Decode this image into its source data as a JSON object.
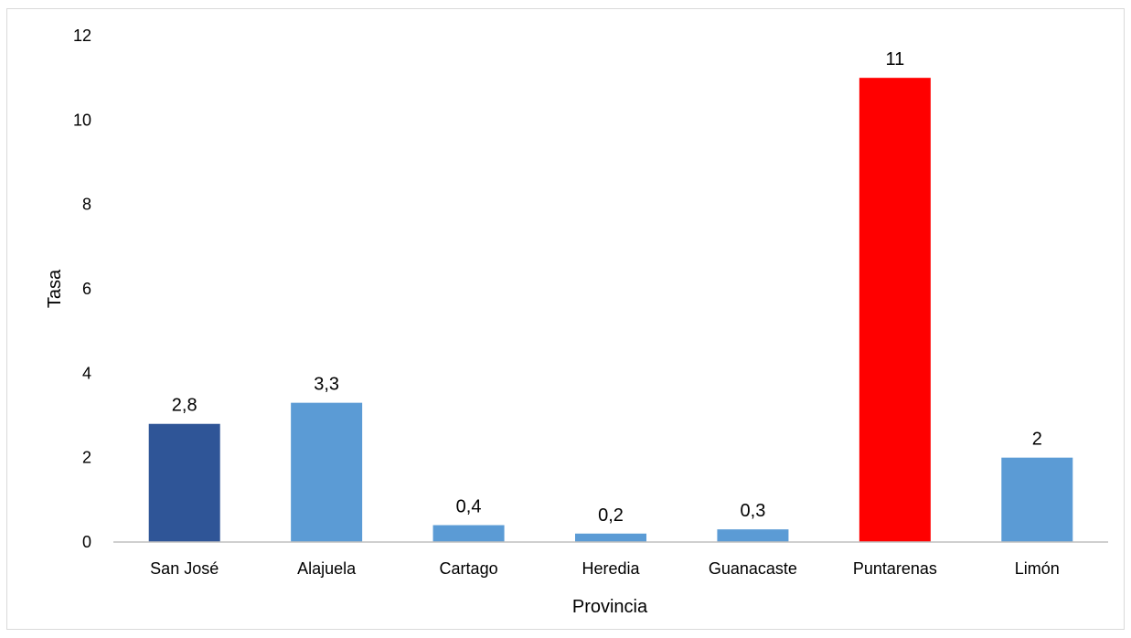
{
  "chart_data": {
    "type": "bar",
    "title": "",
    "xlabel": "Provincia",
    "ylabel": "Tasa",
    "ylim": [
      0,
      12
    ],
    "y_ticks": [
      "0",
      "2",
      "4",
      "6",
      "8",
      "10",
      "12"
    ],
    "grid": false,
    "legend": "none",
    "categories": [
      "San José",
      "Alajuela",
      "Cartago",
      "Heredia",
      "Guanacaste",
      "Puntarenas",
      "Limón"
    ],
    "values": [
      2.8,
      3.3,
      0.4,
      0.2,
      0.3,
      11,
      2
    ],
    "data_labels": [
      "2,8",
      "3,3",
      "0,4",
      "0,2",
      "0,3",
      "11",
      "2"
    ],
    "bar_colors": [
      "#2F5597",
      "#5B9BD5",
      "#5B9BD5",
      "#5B9BD5",
      "#5B9BD5",
      "#FF0000",
      "#5B9BD5"
    ]
  },
  "colors": {
    "axis": "#bfbfbf",
    "frame": "#d9d9d9",
    "text": "#000000"
  }
}
